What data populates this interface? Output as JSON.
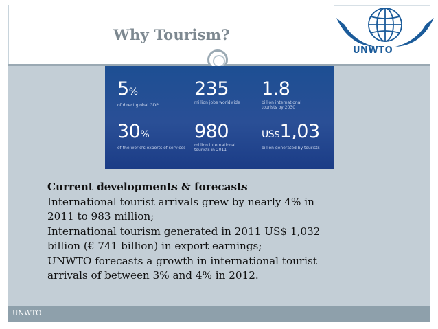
{
  "title": "Why Tourism?",
  "logo": {
    "text": "UNWTO"
  },
  "stats": [
    {
      "value": "5",
      "unit": "%",
      "caption": "of direct global GDP"
    },
    {
      "value": "235",
      "unit": "",
      "caption": "million jobs worldwide"
    },
    {
      "value": "1.8",
      "unit": "",
      "caption": "billion international tourists by 2030"
    },
    {
      "value": "30",
      "unit": "%",
      "caption": "of the world's exports of services"
    },
    {
      "value": "980",
      "unit": "",
      "caption": "million international tourists in 2011"
    },
    {
      "value": "1,03",
      "unit": "US$",
      "caption": "billion generated by tourists"
    }
  ],
  "body": {
    "heading": "Current developments & forecasts",
    "lines": [
      "International tourist arrivals grew by nearly 4% in",
      "2011 to 983 million;",
      "International tourism generated in 2011 US$ 1,032",
      "billion (€ 741 billion) in export earnings;",
      "UNWTO forecasts a growth in international tourist",
      "arrivals of between 3% and 4% in 2012."
    ]
  },
  "footer": {
    "text": "UNWTO"
  },
  "colors": {
    "content_bg": "#c3ced6",
    "footer_bg": "#8ea0ab",
    "stats_bg": "#1d4f93",
    "title": "#7d8890",
    "logo_blue": "#1b5b9a"
  }
}
